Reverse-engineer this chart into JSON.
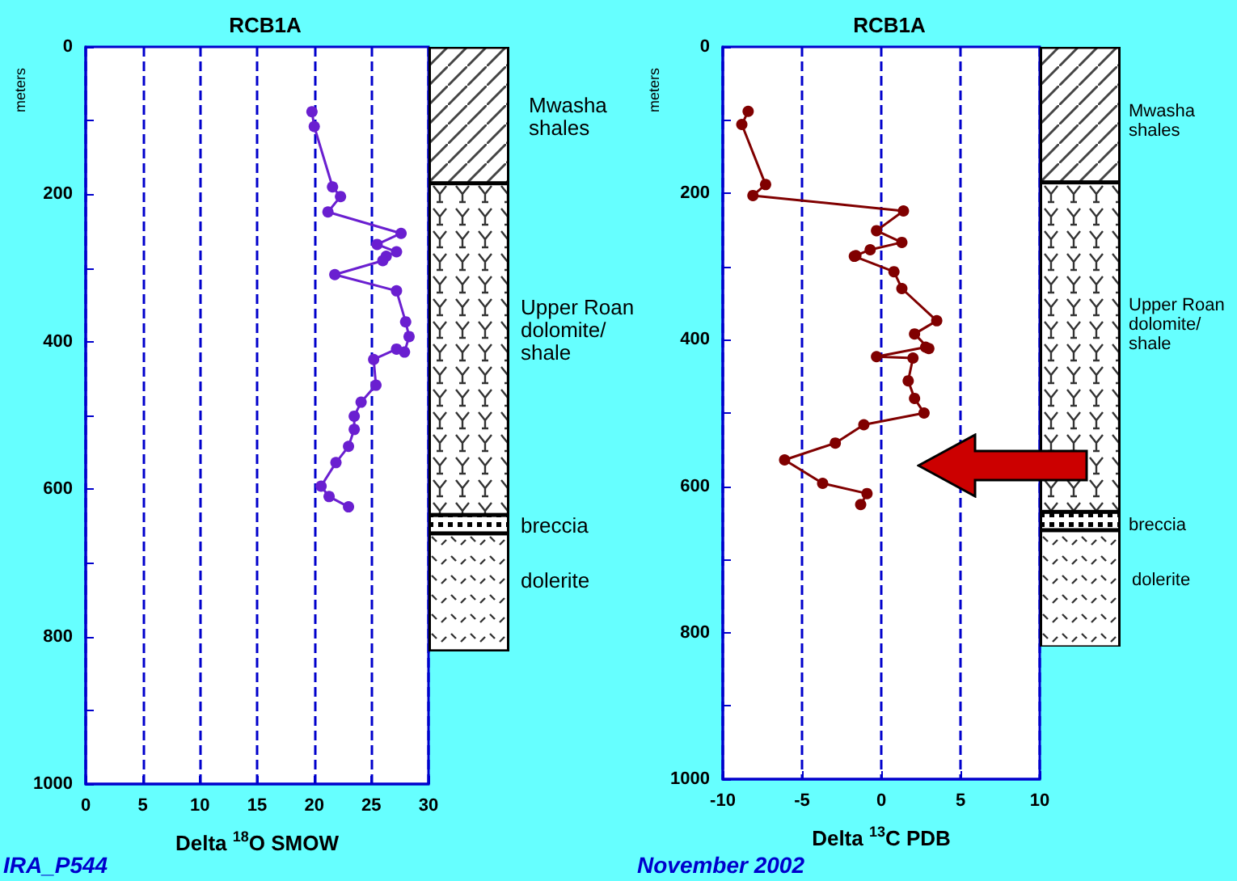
{
  "chart_data": [
    {
      "type": "line",
      "title": "RCB1A",
      "xlabel": "Delta $^{18}$O SMOW",
      "ylabel": "meters",
      "series": [
        {
          "color": "#6a1fd0",
          "x": [
            19.8,
            20.0,
            21.6,
            22.3,
            21.2,
            27.6,
            25.5,
            27.2,
            26.3,
            26.0,
            21.8,
            27.2,
            28.0,
            28.3,
            27.9,
            27.2,
            25.2,
            25.4,
            24.1,
            23.5,
            23.5,
            23.0,
            21.9,
            20.6,
            21.3,
            23.0
          ],
          "values": [
            88,
            108,
            190,
            203,
            224,
            253,
            268,
            278,
            284,
            290,
            309,
            331,
            373,
            393,
            414,
            410,
            424,
            459,
            482,
            501,
            519,
            542,
            564,
            596,
            610,
            624
          ]
        }
      ],
      "xlim": [
        0,
        30
      ],
      "xticks": [
        0,
        5,
        10,
        15,
        20,
        25,
        30
      ],
      "ylim": [
        1000,
        0
      ],
      "yticks": [
        0,
        {
          "value": 100,
          "label": null
        },
        200,
        {
          "value": 300,
          "label": null
        },
        400,
        {
          "value": 500,
          "label": null
        },
        600,
        {
          "value": 700,
          "label": null
        },
        800,
        {
          "value": 900,
          "label": null
        },
        1000
      ],
      "grid": "x",
      "marker": "circle",
      "line_style": "solid",
      "annotations": [
        "Mwasha\nshales",
        "Upper Roan\ndolomite/\nshale",
        "breccia",
        "dolerite",
        "IRA_P544"
      ]
    },
    {
      "type": "line",
      "title": "RCB1A",
      "xlabel": "Delta $^{13}$C PDB",
      "ylabel": "meters",
      "series": [
        {
          "color": "#800000",
          "x": [
            -8.4,
            -8.8,
            -7.3,
            -8.1,
            1.4,
            -0.3,
            1.3,
            -0.7,
            -1.6,
            -1.7,
            0.8,
            1.3,
            3.5,
            2.1,
            3.0,
            2.8,
            -0.3,
            2.0,
            1.7,
            2.1,
            2.7,
            -1.1,
            -2.9,
            -6.1,
            -3.7,
            -0.9,
            -1.3
          ],
          "values": [
            88,
            106,
            188,
            203,
            224,
            251,
            267,
            277,
            285,
            286,
            307,
            330,
            374,
            392,
            412,
            410,
            423,
            425,
            456,
            480,
            500,
            516,
            541,
            564,
            596,
            610,
            625
          ]
        }
      ],
      "xlim": [
        -10,
        10
      ],
      "xticks": [
        -10,
        -5,
        0,
        5,
        10
      ],
      "ylim": [
        1000,
        0
      ],
      "yticks": [
        0,
        {
          "value": 100,
          "label": null
        },
        200,
        {
          "value": 300,
          "label": null
        },
        400,
        {
          "value": 500,
          "label": null
        },
        600,
        {
          "value": 700,
          "label": null
        },
        800,
        {
          "value": 900,
          "label": null
        },
        1000
      ],
      "grid": "x",
      "marker": "circle",
      "line_style": "solid",
      "annotations": [
        "Mwasha\nshales",
        "Upper Roan\ndolomite/\nshale",
        "breccia",
        "dolerite",
        "November 2002"
      ]
    }
  ]
}
